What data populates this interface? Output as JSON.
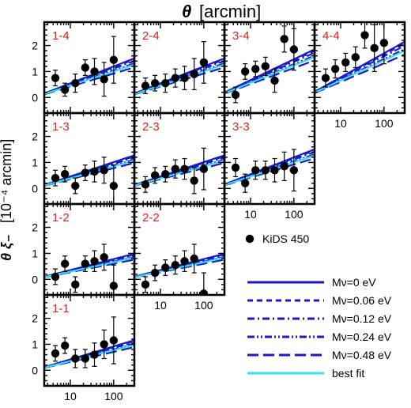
{
  "chart_data": {
    "type": "line",
    "figure": {
      "xlabel_main": "θ",
      "xlabel_unit": "[arcmin]",
      "ylabel_main": "θ ξ₋",
      "ylabel_unit": "[10⁻⁴ arcmin]",
      "xscale": "log",
      "xlim": [
        2.5,
        300
      ],
      "ylim": [
        -0.6,
        2.9
      ],
      "y_ticks": [
        0,
        1,
        2
      ],
      "x_ticks": [
        10,
        100
      ],
      "x_tick_labels": [
        "10",
        "100"
      ]
    },
    "panels": [
      {
        "label": "1-4",
        "row": 0,
        "col": 0,
        "label_color": "#e0201a",
        "data": {
          "x": [
            4.5,
            7.5,
            13,
            22,
            36,
            60,
            100
          ],
          "y": [
            0.75,
            0.3,
            0.55,
            1.15,
            1.0,
            0.7,
            1.45
          ],
          "err": [
            0.3,
            0.25,
            0.35,
            0.3,
            0.5,
            0.65,
            0.9
          ]
        }
      },
      {
        "label": "2-4",
        "row": 0,
        "col": 1,
        "label_color": "#e0201a",
        "data": {
          "x": [
            4.5,
            7.5,
            13,
            22,
            36,
            60,
            100
          ],
          "y": [
            0.45,
            0.55,
            0.55,
            0.75,
            0.75,
            0.9,
            1.35
          ],
          "err": [
            0.3,
            0.3,
            0.35,
            0.35,
            0.45,
            0.6,
            0.8
          ]
        }
      },
      {
        "label": "3-4",
        "row": 0,
        "col": 2,
        "label_color": "#e0201a",
        "data": {
          "x": [
            4.5,
            7.5,
            13,
            22,
            36,
            60,
            100
          ],
          "y": [
            0.1,
            1.0,
            1.1,
            1.2,
            0.65,
            2.25,
            1.85
          ],
          "err": [
            0.3,
            0.3,
            0.3,
            0.35,
            0.45,
            0.5,
            0.8
          ]
        }
      },
      {
        "label": "4-4",
        "row": 0,
        "col": 3,
        "label_color": "#e0201a",
        "data": {
          "x": [
            4.5,
            7.5,
            13,
            22,
            36,
            60,
            100
          ],
          "y": [
            0.75,
            1.1,
            1.35,
            1.55,
            2.4,
            1.9,
            2.1
          ],
          "err": [
            0.35,
            0.35,
            0.35,
            0.4,
            0.5,
            0.9,
            0.8
          ]
        }
      },
      {
        "label": "1-3",
        "row": 1,
        "col": 0,
        "label_color": "#e0201a",
        "data": {
          "x": [
            4.5,
            7.5,
            13,
            22,
            36,
            60,
            100
          ],
          "y": [
            0.4,
            0.55,
            0.1,
            0.6,
            0.65,
            0.7,
            0.1
          ],
          "err": [
            0.3,
            0.3,
            0.3,
            0.3,
            0.4,
            0.5,
            0.8
          ]
        }
      },
      {
        "label": "2-3",
        "row": 1,
        "col": 1,
        "label_color": "#e0201a",
        "data": {
          "x": [
            4.5,
            7.5,
            13,
            22,
            36,
            60,
            100
          ],
          "y": [
            0.15,
            0.5,
            0.55,
            0.75,
            0.75,
            0.3,
            0.75
          ],
          "err": [
            0.3,
            0.3,
            0.3,
            0.35,
            0.4,
            0.5,
            0.8
          ]
        }
      },
      {
        "label": "3-3",
        "row": 1,
        "col": 2,
        "label_color": "#e0201a",
        "data": {
          "x": [
            4.5,
            7.5,
            13,
            22,
            36,
            60,
            100
          ],
          "y": [
            0.8,
            0.2,
            0.7,
            0.7,
            0.7,
            0.85,
            0.7
          ],
          "err": [
            0.35,
            0.35,
            0.35,
            0.35,
            0.45,
            0.55,
            0.8
          ]
        }
      },
      {
        "label": "1-2",
        "row": 2,
        "col": 0,
        "label_color": "#e0201a",
        "data": {
          "x": [
            4.5,
            7.5,
            13,
            22,
            36,
            60,
            100
          ],
          "y": [
            0.1,
            0.6,
            -0.2,
            0.6,
            0.7,
            0.85,
            -0.25
          ],
          "err": [
            0.3,
            0.3,
            0.3,
            0.3,
            0.4,
            0.5,
            0.8
          ]
        }
      },
      {
        "label": "2-2",
        "row": 2,
        "col": 1,
        "label_color": "#e0201a",
        "data": {
          "x": [
            4.5,
            7.5,
            13,
            22,
            36,
            60,
            100
          ],
          "y": [
            -0.2,
            0.25,
            0.45,
            0.55,
            0.7,
            0.8,
            -0.55
          ],
          "err": [
            0.3,
            0.3,
            0.3,
            0.35,
            0.4,
            0.55,
            0.8
          ]
        }
      },
      {
        "label": "1-1",
        "row": 3,
        "col": 0,
        "label_color": "#e0201a",
        "data": {
          "x": [
            4.5,
            7.5,
            13,
            22,
            36,
            60,
            100
          ],
          "y": [
            0.65,
            0.95,
            0.45,
            0.45,
            0.6,
            1.0,
            1.15
          ],
          "err": [
            0.3,
            0.3,
            0.35,
            0.35,
            0.45,
            0.55,
            0.9
          ]
        }
      }
    ],
    "model_amplitude_by_panel": {
      "1-1": 1.0,
      "1-2": 0.85,
      "1-3": 1.1,
      "1-4": 1.3,
      "2-2": 0.85,
      "2-3": 1.1,
      "2-4": 1.3,
      "3-3": 1.3,
      "3-4": 1.6,
      "4-4": 1.85
    },
    "series": [
      {
        "name": "Mν=0 eV",
        "color": "#1a1acc",
        "dash": "solid",
        "scale": 1.0
      },
      {
        "name": "Mν=0.06 eV",
        "color": "#1a1acc",
        "dash": "short-dash",
        "scale": 0.97
      },
      {
        "name": "Mν=0.12 eV",
        "color": "#1a1acc",
        "dash": "dash-dot",
        "scale": 0.93
      },
      {
        "name": "Mν=0.24 eV",
        "color": "#1a1acc",
        "dash": "dash-dot-dot",
        "scale": 0.87
      },
      {
        "name": "Mν=0.48 eV",
        "color": "#1a1acc",
        "dash": "long-dash",
        "scale": 0.77
      },
      {
        "name": "best fit",
        "color": "#33e0e6",
        "dash": "solid",
        "scale": 0.84
      }
    ],
    "data_legend": "KiDS 450",
    "legend_placement": "bottom-right"
  }
}
